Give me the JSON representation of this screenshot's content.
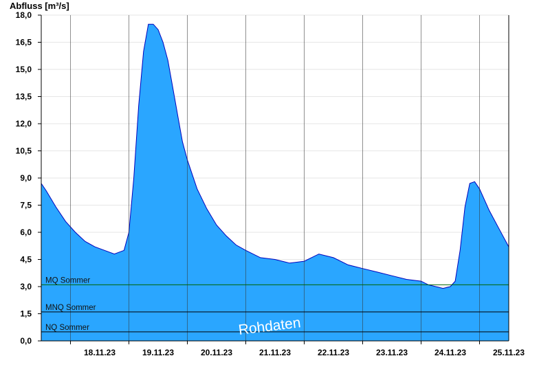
{
  "chart_data": {
    "type": "area",
    "ylabel": "Abfluss [m³/s]",
    "ylim": [
      0,
      18
    ],
    "yticks": [
      "0,0",
      "1,5",
      "3,0",
      "4,5",
      "6,0",
      "7,5",
      "9,0",
      "10,5",
      "12,0",
      "13,5",
      "15,0",
      "16,5",
      "18,0"
    ],
    "xlim": [
      "17.11.23 12:00",
      "25.11.23 12:00"
    ],
    "xticks": [
      "18.11.23",
      "19.11.23",
      "20.11.23",
      "21.11.23",
      "22.11.23",
      "23.11.23",
      "24.11.23",
      "25.11.23"
    ],
    "grid": true,
    "colors": {
      "fill": "#2aa6ff",
      "line": "#0000bb"
    },
    "series": [
      {
        "x": [
          "17.11.23 12:00",
          "17.11.23 14:00",
          "17.11.23 18:00",
          "17.11.23 22:00",
          "18.11.23 02:00",
          "18.11.23 06:00",
          "18.11.23 10:00",
          "18.11.23 14:00",
          "18.11.23 18:00",
          "18.11.23 22:00",
          "19.11.23 00:00",
          "19.11.23 02:00",
          "19.11.23 04:00",
          "19.11.23 06:00",
          "19.11.23 08:00",
          "19.11.23 10:00",
          "19.11.23 12:00",
          "19.11.23 14:00",
          "19.11.23 16:00",
          "19.11.23 18:00",
          "19.11.23 20:00",
          "19.11.23 22:00",
          "20.11.23 00:00",
          "20.11.23 02:00",
          "20.11.23 04:00",
          "20.11.23 08:00",
          "20.11.23 12:00",
          "20.11.23 16:00",
          "20.11.23 20:00",
          "21.11.23 00:00",
          "21.11.23 06:00",
          "21.11.23 12:00",
          "21.11.23 18:00",
          "22.11.23 00:00",
          "22.11.23 06:00",
          "22.11.23 12:00",
          "22.11.23 18:00",
          "23.11.23 00:00",
          "23.11.23 06:00",
          "23.11.23 12:00",
          "23.11.23 18:00",
          "24.11.23 00:00",
          "24.11.23 03:00",
          "24.11.23 06:00",
          "24.11.23 09:00",
          "24.11.23 12:00",
          "24.11.23 14:00",
          "24.11.23 16:00",
          "24.11.23 18:00",
          "24.11.23 20:00",
          "24.11.23 22:00",
          "25.11.23 00:00",
          "25.11.23 02:00",
          "25.11.23 04:00",
          "25.11.23 08:00",
          "25.11.23 12:00"
        ],
        "values": [
          8.7,
          8.3,
          7.4,
          6.6,
          6.0,
          5.5,
          5.2,
          5.0,
          4.8,
          5.0,
          6.0,
          9.0,
          13.0,
          16.0,
          17.5,
          17.5,
          17.2,
          16.5,
          15.5,
          14.0,
          12.5,
          11.0,
          10.0,
          9.2,
          8.4,
          7.3,
          6.4,
          5.8,
          5.3,
          5.0,
          4.6,
          4.5,
          4.3,
          4.4,
          4.8,
          4.6,
          4.2,
          4.0,
          3.8,
          3.6,
          3.4,
          3.3,
          3.1,
          3.0,
          2.9,
          3.0,
          3.3,
          5.0,
          7.4,
          8.7,
          8.8,
          8.4,
          7.8,
          7.2,
          6.2,
          5.2
        ]
      }
    ],
    "reference_lines": [
      {
        "label": "MQ Sommer",
        "value": 3.1,
        "color": "#006400"
      },
      {
        "label": "MNQ Sommer",
        "value": 1.6,
        "color": "#000000"
      },
      {
        "label": "NQ Sommer",
        "value": 0.5,
        "color": "#000000"
      }
    ],
    "watermark": "Rohdaten"
  }
}
